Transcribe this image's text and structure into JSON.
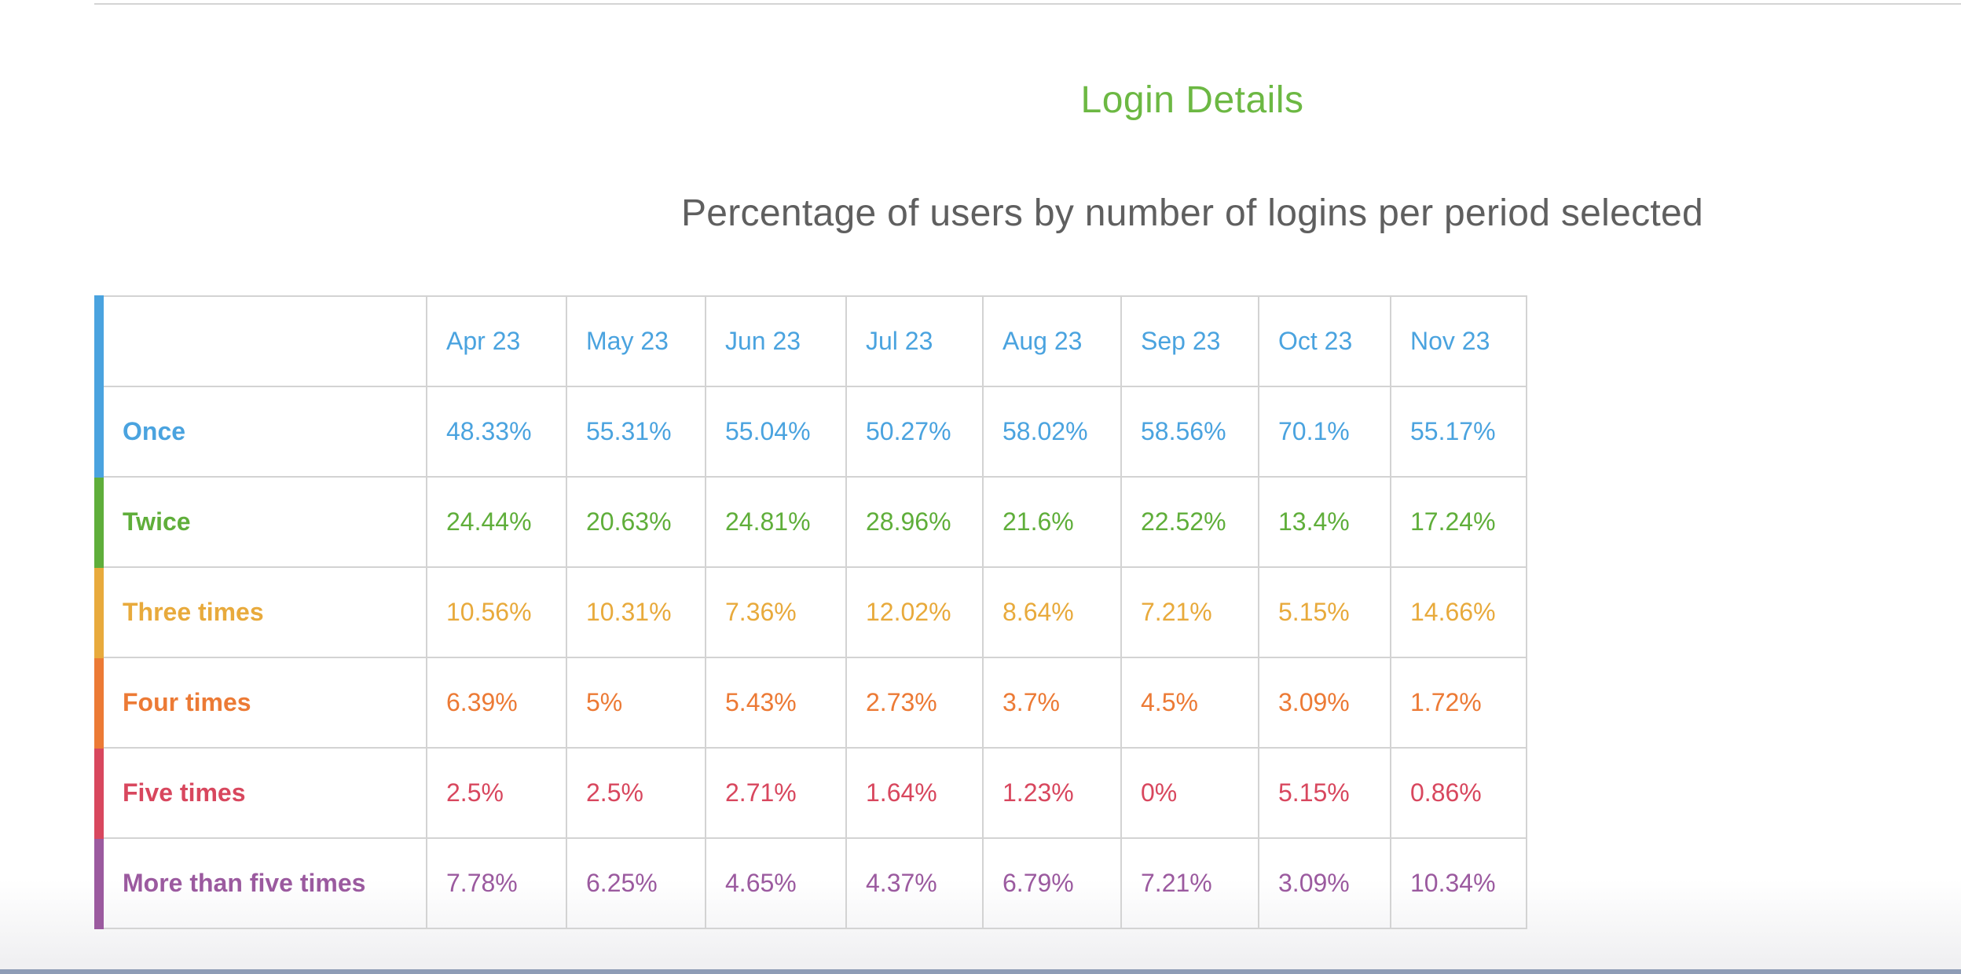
{
  "title": "Login Details",
  "subtitle": "Percentage of users by number of logins per period selected",
  "header_color": "#4aa3df",
  "columns": [
    "Apr 23",
    "May 23",
    "Jun 23",
    "Jul 23",
    "Aug 23",
    "Sep 23",
    "Oct 23",
    "Nov 23"
  ],
  "rows": [
    {
      "label": "Once",
      "color": "#4aa3df",
      "values": [
        "48.33%",
        "55.31%",
        "55.04%",
        "50.27%",
        "58.02%",
        "58.56%",
        "70.1%",
        "55.17%"
      ]
    },
    {
      "label": "Twice",
      "color": "#5fae3a",
      "values": [
        "24.44%",
        "20.63%",
        "24.81%",
        "28.96%",
        "21.6%",
        "22.52%",
        "13.4%",
        "17.24%"
      ]
    },
    {
      "label": "Three times",
      "color": "#e8aa3c",
      "values": [
        "10.56%",
        "10.31%",
        "7.36%",
        "12.02%",
        "8.64%",
        "7.21%",
        "5.15%",
        "14.66%"
      ]
    },
    {
      "label": "Four times",
      "color": "#ec7a35",
      "values": [
        "6.39%",
        "5%",
        "5.43%",
        "2.73%",
        "3.7%",
        "4.5%",
        "3.09%",
        "1.72%"
      ]
    },
    {
      "label": "Five times",
      "color": "#d8475e",
      "values": [
        "2.5%",
        "2.5%",
        "2.71%",
        "1.64%",
        "1.23%",
        "0%",
        "5.15%",
        "0.86%"
      ]
    },
    {
      "label": "More than five times",
      "color": "#9b5a9f",
      "values": [
        "7.78%",
        "6.25%",
        "4.65%",
        "4.37%",
        "6.79%",
        "7.21%",
        "3.09%",
        "10.34%"
      ]
    }
  ]
}
